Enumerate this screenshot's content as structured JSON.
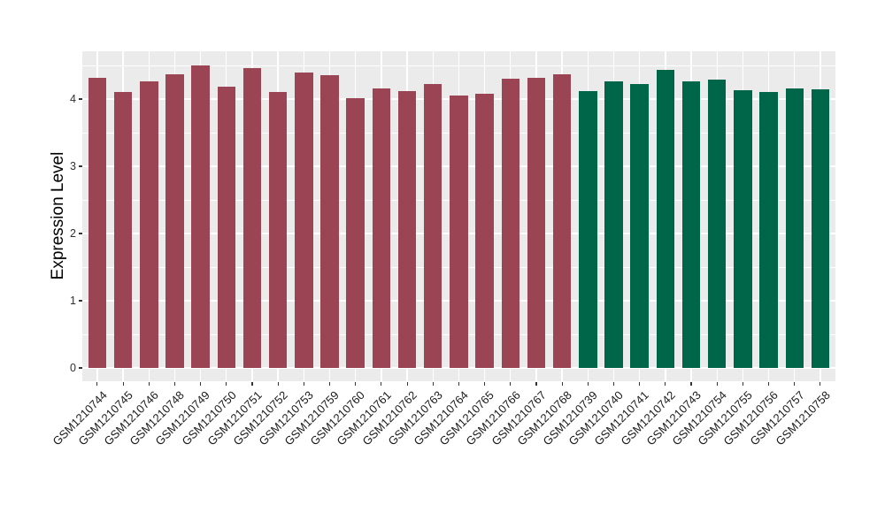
{
  "chart_data": {
    "type": "bar",
    "title": "",
    "xlabel": "",
    "ylabel": "Expression Level",
    "categories": [
      "GSM1210744",
      "GSM1210745",
      "GSM1210746",
      "GSM1210748",
      "GSM1210749",
      "GSM1210750",
      "GSM1210751",
      "GSM1210752",
      "GSM1210753",
      "GSM1210759",
      "GSM1210760",
      "GSM1210761",
      "GSM1210762",
      "GSM1210763",
      "GSM1210764",
      "GSM1210765",
      "GSM1210766",
      "GSM1210767",
      "GSM1210768",
      "GSM1210739",
      "GSM1210740",
      "GSM1210741",
      "GSM1210742",
      "GSM1210743",
      "GSM1210754",
      "GSM1210755",
      "GSM1210756",
      "GSM1210757",
      "GSM1210758"
    ],
    "values": [
      4.32,
      4.11,
      4.26,
      4.37,
      4.5,
      4.19,
      4.46,
      4.1,
      4.39,
      4.35,
      4.01,
      4.16,
      4.12,
      4.22,
      4.05,
      4.08,
      4.3,
      4.31,
      4.37,
      4.12,
      4.26,
      4.22,
      4.43,
      4.26,
      4.29,
      4.13,
      4.1,
      4.16,
      4.15
    ],
    "bar_group_index": [
      0,
      0,
      0,
      0,
      0,
      0,
      0,
      0,
      0,
      0,
      0,
      0,
      0,
      0,
      0,
      0,
      0,
      0,
      0,
      1,
      1,
      1,
      1,
      1,
      1,
      1,
      1,
      1,
      1
    ],
    "groups": [
      {
        "name": "group-red",
        "color": "#9B4453"
      },
      {
        "name": "group-green",
        "color": "#006649"
      }
    ],
    "yticks": [
      0,
      1,
      2,
      3,
      4
    ],
    "minor_yticks": [
      0.5,
      1.5,
      2.5,
      3.5,
      4.5
    ],
    "ylim": [
      -0.2,
      4.71
    ],
    "grid": "horizontal major+minor, vertical major at bar centers",
    "legend_position": "none",
    "panel_background": "#EBEBEB",
    "gridline_color": "#FFFFFF",
    "axis_text_color": "#303030"
  }
}
